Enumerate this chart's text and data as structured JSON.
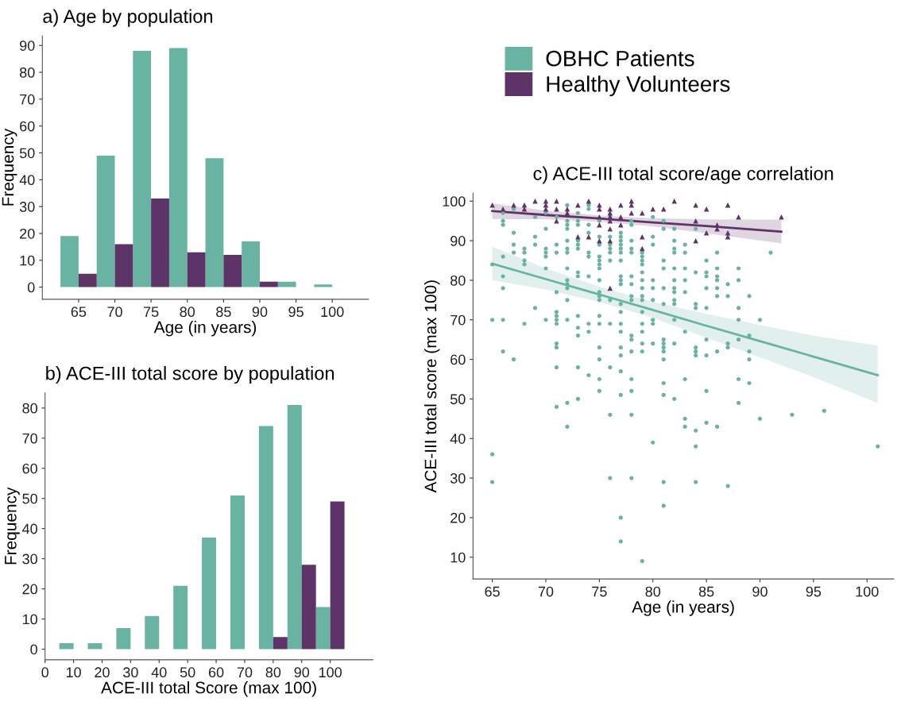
{
  "chart_data": [
    {
      "type": "histogram",
      "title": "a) Age by population",
      "xlabel": "Age (in years)",
      "ylabel": "Frequency",
      "bins": [
        62.5,
        67.5,
        72.5,
        77.5,
        82.5,
        87.5,
        92.5,
        97.5,
        102.5
      ],
      "series": [
        {
          "color": "#69b3a2",
          "values": [
            19,
            49,
            88,
            89,
            48,
            17,
            2,
            1
          ]
        },
        {
          "color": "#5e3468",
          "values": [
            5,
            16,
            33,
            13,
            12,
            2,
            0,
            0
          ]
        }
      ],
      "xlim": [
        60,
        105
      ],
      "ylim": [
        -4.5,
        93.5
      ],
      "xticks": [
        65,
        70,
        75,
        80,
        85,
        90,
        95,
        100
      ],
      "yticks": [
        0,
        10,
        20,
        30,
        40,
        50,
        60,
        70,
        80,
        90
      ],
      "grid": false,
      "legend": false
    },
    {
      "type": "histogram",
      "title": "b) ACE-III total score by population",
      "xlabel": "ACE-III total Score (max 100)",
      "ylabel": "Frequency",
      "bins": [
        5,
        15,
        25,
        35,
        45,
        55,
        65,
        75,
        85,
        95,
        105
      ],
      "series": [
        {
          "color": "#69b3a2",
          "values": [
            2,
            2,
            7,
            11,
            21,
            37,
            51,
            74,
            81,
            14
          ]
        },
        {
          "color": "#5e3468",
          "values": [
            0,
            0,
            0,
            0,
            0,
            0,
            0,
            4,
            28,
            49
          ]
        }
      ],
      "xlim": [
        0,
        115
      ],
      "ylim": [
        -3.5,
        85
      ],
      "xticks": [
        0,
        10,
        20,
        30,
        40,
        50,
        60,
        70,
        80,
        90,
        100
      ],
      "yticks": [
        0,
        10,
        20,
        30,
        40,
        50,
        60,
        70,
        80
      ],
      "grid": false,
      "legend": false
    },
    {
      "type": "scatter",
      "title": "c) ACE-III total score/age correlation",
      "xlabel": "Age (in years)",
      "ylabel": "ACE-III total score (max 100)",
      "legend": "top",
      "series": [
        {
          "name": "OBHC Patients",
          "color": "#69b3a2",
          "marker": "circle",
          "x": [
            65,
            65,
            65,
            65,
            66,
            66,
            66,
            66,
            66,
            66,
            66,
            66,
            67,
            67,
            67,
            67,
            67,
            68,
            68,
            68,
            68,
            68,
            69,
            69,
            69,
            69,
            70,
            70,
            70,
            70,
            70,
            70,
            70,
            71,
            71,
            71,
            71,
            71,
            71,
            71,
            71,
            71,
            71,
            71,
            71,
            72,
            72,
            72,
            72,
            72,
            72,
            72,
            72,
            72,
            72,
            72,
            72,
            72,
            72,
            72,
            73,
            73,
            73,
            73,
            73,
            73,
            73,
            73,
            73,
            73,
            73,
            73,
            73,
            74,
            74,
            74,
            74,
            74,
            74,
            74,
            74,
            74,
            74,
            75,
            75,
            75,
            75,
            75,
            75,
            75,
            75,
            75,
            75,
            75,
            75,
            75,
            75,
            75,
            75,
            75,
            76,
            76,
            76,
            76,
            76,
            76,
            76,
            76,
            76,
            76,
            76,
            77,
            77,
            77,
            77,
            77,
            77,
            77,
            77,
            77,
            77,
            77,
            77,
            77,
            77,
            77,
            77,
            77,
            77,
            77,
            77,
            78,
            78,
            78,
            78,
            78,
            78,
            78,
            78,
            78,
            78,
            78,
            78,
            78,
            78,
            78,
            78,
            79,
            79,
            79,
            79,
            79,
            79,
            79,
            79,
            79,
            79,
            79,
            79,
            79,
            79,
            79,
            80,
            80,
            80,
            80,
            80,
            80,
            80,
            80,
            80,
            80,
            81,
            81,
            81,
            81,
            81,
            81,
            81,
            81,
            81,
            81,
            81,
            81,
            81,
            81,
            81,
            82,
            82,
            82,
            82,
            82,
            82,
            82,
            82,
            82,
            82,
            82,
            82,
            82,
            83,
            83,
            83,
            83,
            83,
            83,
            83,
            83,
            83,
            84,
            84,
            84,
            84,
            84,
            84,
            84,
            84,
            84,
            84,
            85,
            85,
            85,
            85,
            85,
            85,
            85,
            85,
            85,
            86,
            86,
            86,
            86,
            86,
            86,
            86,
            86,
            87,
            87,
            87,
            87,
            87,
            88,
            88,
            88,
            88,
            88,
            88,
            88,
            89,
            89,
            89,
            89,
            89,
            90,
            90,
            91,
            93,
            96,
            101
          ],
          "values": [
            84,
            70,
            36,
            29,
            97,
            95,
            94,
            86,
            81,
            78,
            70,
            62,
            98,
            92,
            89,
            87,
            60,
            88,
            87,
            85,
            84,
            69,
            96,
            91,
            89,
            73,
            97,
            93,
            88,
            87,
            86,
            83,
            70,
            96,
            89,
            87,
            77,
            72,
            71,
            70,
            69,
            64,
            63,
            58,
            48,
            99,
            95,
            94,
            93,
            90,
            88,
            87,
            83,
            80,
            79,
            78,
            75,
            70,
            49,
            43,
            97,
            95,
            94,
            90,
            89,
            88,
            82,
            81,
            71,
            68,
            66,
            58,
            50,
            99,
            98,
            94,
            92,
            87,
            86,
            81,
            69,
            67,
            56,
            95,
            91,
            89,
            86,
            85,
            84,
            83,
            80,
            77,
            76,
            75,
            71,
            69,
            63,
            60,
            55,
            52,
            96,
            91,
            89,
            88,
            87,
            85,
            75,
            69,
            58,
            46,
            30,
            92,
            91,
            90,
            89,
            88,
            87,
            85,
            81,
            80,
            79,
            74,
            72,
            69,
            67,
            63,
            61,
            57,
            51,
            20,
            14,
            95,
            94,
            90,
            88,
            87,
            81,
            79,
            76,
            75,
            66,
            65,
            62,
            55,
            52,
            46,
            30,
            87,
            86,
            85,
            84,
            82,
            80,
            78,
            76,
            75,
            72,
            69,
            67,
            64,
            62,
            9,
            96,
            91,
            89,
            80,
            78,
            75,
            70,
            69,
            64,
            39,
            95,
            93,
            85,
            83,
            78,
            74,
            65,
            64,
            63,
            62,
            60,
            54,
            51,
            29,
            23,
            93,
            90,
            88,
            87,
            83,
            80,
            78,
            77,
            75,
            74,
            70,
            64,
            50,
            89,
            87,
            83,
            80,
            77,
            67,
            55,
            45,
            43,
            93,
            82,
            74,
            73,
            63,
            62,
            61,
            42,
            38,
            29,
            85,
            82,
            81,
            78,
            73,
            65,
            61,
            52,
            44,
            87,
            83,
            81,
            80,
            78,
            76,
            62,
            43,
            79,
            76,
            64,
            63,
            28,
            83,
            80,
            73,
            70,
            65,
            55,
            49,
            76,
            66,
            62,
            60,
            54,
            70,
            45,
            87,
            46,
            47,
            38
          ]
        },
        {
          "name": "Healthy Volunteers",
          "color": "#5e3468",
          "marker": "triangle",
          "x": [
            65,
            66,
            67,
            68,
            68,
            69,
            70,
            70,
            70,
            71,
            71,
            71,
            72,
            72,
            73,
            73,
            74,
            74,
            75,
            75,
            75,
            75,
            75,
            76,
            76,
            76,
            76,
            76,
            76,
            76,
            77,
            77,
            77,
            78,
            78,
            78,
            79,
            79,
            79,
            80,
            81,
            82,
            84,
            84,
            84,
            85,
            85,
            86,
            86,
            87,
            87,
            87,
            88,
            92
          ],
          "values": [
            99,
            98,
            99,
            99,
            98,
            100,
            100,
            99,
            98,
            100,
            98,
            95,
            98,
            97,
            99,
            91,
            100,
            91,
            99,
            98,
            96,
            94,
            90,
            98,
            97,
            96,
            95,
            93,
            90,
            78,
            99,
            96,
            94,
            100,
            99,
            97,
            97,
            91,
            88,
            98,
            98,
            100,
            99,
            95,
            90,
            98,
            92,
            94,
            93,
            99,
            92,
            91,
            96,
            96
          ]
        },
        {
          "type": "line",
          "color": "#69b3a2",
          "x": [
            65,
            70,
            75,
            80,
            85,
            90,
            95,
            101
          ],
          "values": [
            84.2,
            80.3,
            76.4,
            72.5,
            68.5,
            64.6,
            60.7,
            56.0
          ],
          "lower": [
            80.0,
            77.7,
            74.5,
            70.5,
            65.5,
            60.5,
            55.5,
            49.0
          ],
          "upper": [
            88.5,
            83.0,
            78.4,
            74.5,
            71.5,
            68.7,
            66.0,
            63.5
          ]
        },
        {
          "type": "line",
          "color": "#5e3468",
          "x": [
            65,
            70,
            75,
            80,
            85,
            92
          ],
          "values": [
            97.5,
            96.5,
            95.6,
            94.6,
            93.7,
            92.3
          ],
          "lower": [
            95.5,
            95.4,
            94.8,
            93.6,
            91.9,
            89.3
          ],
          "upper": [
            99.4,
            97.6,
            96.4,
            95.7,
            95.4,
            95.3
          ]
        }
      ],
      "xlim": [
        63.2,
        102.5
      ],
      "ylim": [
        4.5,
        102
      ],
      "xticks": [
        65,
        70,
        75,
        80,
        85,
        90,
        95,
        100
      ],
      "yticks": [
        10,
        20,
        30,
        40,
        50,
        60,
        70,
        80,
        90,
        100
      ],
      "grid": false
    }
  ]
}
